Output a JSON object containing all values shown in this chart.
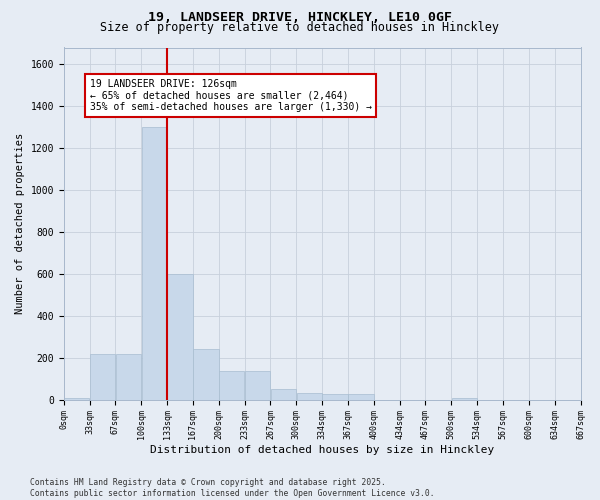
{
  "title_line1": "19, LANDSEER DRIVE, HINCKLEY, LE10 0GF",
  "title_line2": "Size of property relative to detached houses in Hinckley",
  "xlabel": "Distribution of detached houses by size in Hinckley",
  "ylabel": "Number of detached properties",
  "bar_color": "#c8d8ea",
  "bar_edge_color": "#a8bdd0",
  "grid_color": "#c8d0dc",
  "bg_color": "#e6ecf4",
  "vline_color": "#cc0000",
  "annotation_text": "19 LANDSEER DRIVE: 126sqm\n← 65% of detached houses are smaller (2,464)\n35% of semi-detached houses are larger (1,330) →",
  "annotation_box_color": "#ffffff",
  "annotation_edge_color": "#cc0000",
  "bar_heights": [
    10,
    220,
    220,
    1300,
    600,
    240,
    135,
    135,
    50,
    30,
    25,
    25,
    0,
    0,
    0,
    10,
    0,
    0,
    0,
    0
  ],
  "tick_labels": [
    "0sqm",
    "33sqm",
    "67sqm",
    "100sqm",
    "133sqm",
    "167sqm",
    "200sqm",
    "233sqm",
    "267sqm",
    "300sqm",
    "334sqm",
    "367sqm",
    "400sqm",
    "434sqm",
    "467sqm",
    "500sqm",
    "534sqm",
    "567sqm",
    "600sqm",
    "634sqm",
    "667sqm"
  ],
  "ylim": [
    0,
    1680
  ],
  "yticks": [
    0,
    200,
    400,
    600,
    800,
    1000,
    1200,
    1400,
    1600
  ],
  "footnote": "Contains HM Land Registry data © Crown copyright and database right 2025.\nContains public sector information licensed under the Open Government Licence v3.0.",
  "title_fontsize": 9.5,
  "subtitle_fontsize": 8.5,
  "tick_fontsize": 6.0,
  "ylabel_fontsize": 7.5,
  "xlabel_fontsize": 8.0,
  "annotation_fontsize": 7.0,
  "footnote_fontsize": 5.8,
  "ytick_fontsize": 7.0
}
